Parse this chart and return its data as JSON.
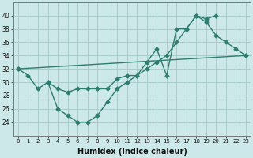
{
  "line1_x": [
    0,
    1,
    2,
    3,
    4,
    5,
    6,
    7,
    8,
    9,
    10,
    11,
    12,
    13,
    14,
    15,
    16,
    17,
    18,
    19,
    20,
    21,
    22,
    23
  ],
  "line1_y": [
    32,
    31,
    29,
    30,
    26,
    25,
    24,
    24,
    25,
    27,
    29,
    30,
    31,
    33,
    35,
    31,
    38,
    38,
    40,
    39,
    37,
    36,
    35,
    34
  ],
  "line2_x": [
    0,
    23
  ],
  "line2_y": [
    32,
    34
  ],
  "line3_x": [
    3,
    4,
    5,
    6,
    7,
    8,
    9,
    10,
    11,
    12,
    13,
    14,
    15,
    16,
    17,
    18,
    19,
    20
  ],
  "line3_y": [
    30,
    29,
    28.5,
    29,
    29,
    29,
    29,
    30.5,
    31,
    31,
    32,
    33,
    34,
    36,
    38,
    40,
    39.5,
    40
  ],
  "line_color": "#2e7d6e",
  "bg_color": "#cce8e8",
  "grid_color": "#a8cccc",
  "xlabel": "Humidex (Indice chaleur)",
  "ylim": [
    22,
    42
  ],
  "xlim": [
    -0.5,
    23.5
  ],
  "yticks": [
    24,
    26,
    28,
    30,
    32,
    34,
    36,
    38,
    40
  ],
  "xticks": [
    0,
    1,
    2,
    3,
    4,
    5,
    6,
    7,
    8,
    9,
    10,
    11,
    12,
    13,
    14,
    15,
    16,
    17,
    18,
    19,
    20,
    21,
    22,
    23
  ]
}
